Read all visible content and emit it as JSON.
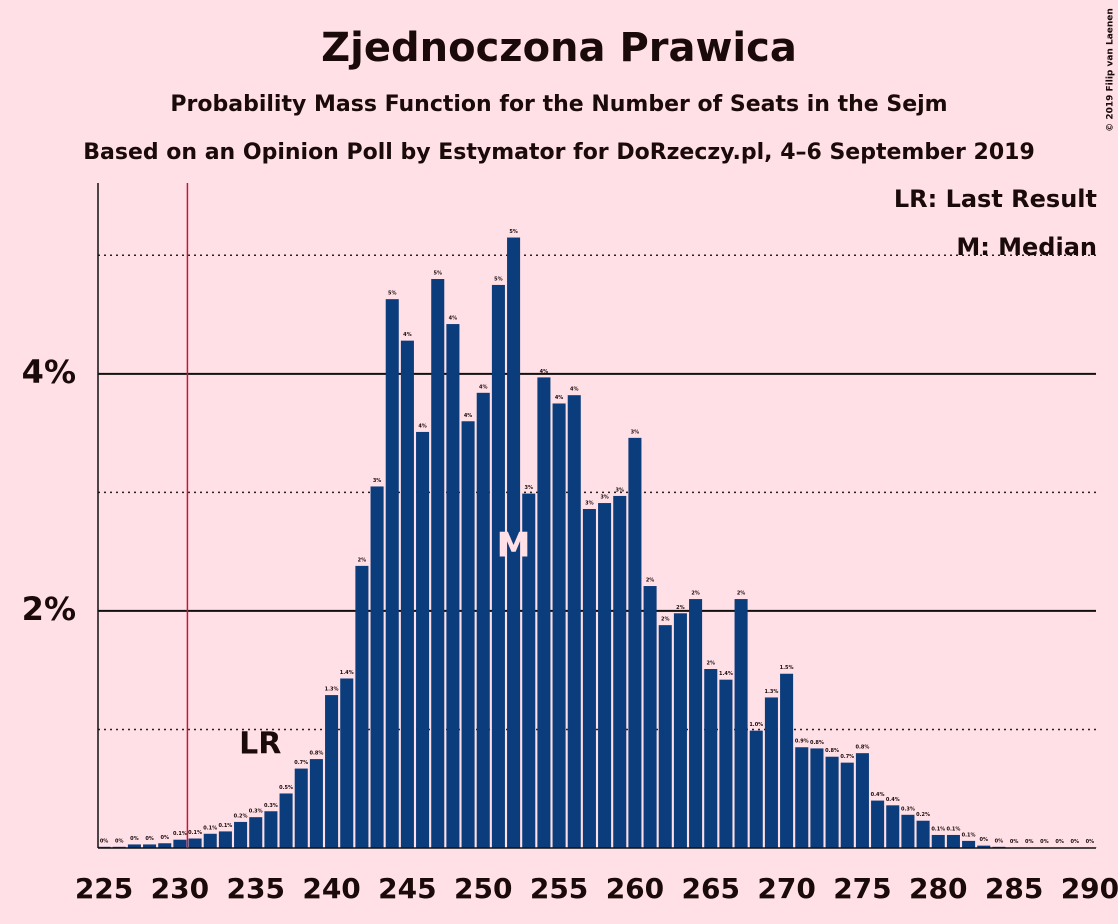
{
  "chart_data": {
    "type": "bar",
    "title": "Zjednoczona Prawica",
    "subtitle": "Probability Mass Function for the Number of Seats in the Sejm",
    "subtitle2": "Based on an Opinion Poll by Estymator for DoRzeczy.pl, 4–6 September 2019",
    "copyright": "© 2019 Filip van Laenen",
    "legend": [
      "LR: Last Result",
      "M: Median"
    ],
    "last_result": 230,
    "last_result_label": "LR",
    "median": 252,
    "median_label": "M",
    "color": "#0b3c7c",
    "lr_color": "#c8143c",
    "x": [
      225,
      226,
      227,
      228,
      229,
      230,
      231,
      232,
      233,
      234,
      235,
      236,
      237,
      238,
      239,
      240,
      241,
      242,
      243,
      244,
      245,
      246,
      247,
      248,
      249,
      250,
      251,
      252,
      253,
      254,
      255,
      256,
      257,
      258,
      259,
      260,
      261,
      262,
      263,
      264,
      265,
      266,
      267,
      268,
      269,
      270,
      271,
      272,
      273,
      274,
      275,
      276,
      277,
      278,
      279,
      280,
      281,
      282,
      283,
      284,
      285,
      286,
      287,
      288,
      289,
      290
    ],
    "values": [
      0.01,
      0.01,
      0.03,
      0.03,
      0.04,
      0.07,
      0.08,
      0.12,
      0.14,
      0.22,
      0.26,
      0.31,
      0.46,
      0.67,
      0.75,
      1.29,
      1.43,
      2.38,
      3.05,
      4.63,
      4.28,
      3.51,
      4.8,
      4.42,
      3.6,
      3.84,
      4.75,
      5.15,
      2.99,
      3.97,
      3.75,
      3.82,
      2.86,
      2.91,
      2.97,
      3.46,
      2.21,
      1.88,
      1.98,
      2.1,
      1.51,
      1.42,
      2.1,
      0.99,
      1.27,
      1.47,
      0.85,
      0.84,
      0.77,
      0.72,
      0.8,
      0.4,
      0.36,
      0.28,
      0.23,
      0.11,
      0.11,
      0.06,
      0.02,
      0.01,
      0.004,
      0.004,
      0.004,
      0.004,
      0.004,
      0.004
    ],
    "value_labels": [
      "0%",
      "0%",
      "0%",
      "0%",
      "0%",
      "0.1%",
      "0.1%",
      "0.1%",
      "0.1%",
      "0.2%",
      "0.3%",
      "0.3%",
      "0.5%",
      "0.7%",
      "0.8%",
      "1.3%",
      "1.4%",
      "2%",
      "3%",
      "5%",
      "4%",
      "4%",
      "5%",
      "4%",
      "4%",
      "4%",
      "5%",
      "5%",
      "3%",
      "4%",
      "4%",
      "4%",
      "3%",
      "3%",
      "3%",
      "3%",
      "2%",
      "2%",
      "2%",
      "2%",
      "2%",
      "1.4%",
      "2%",
      "1.0%",
      "1.3%",
      "1.5%",
      "0.9%",
      "0.8%",
      "0.8%",
      "0.7%",
      "0.8%",
      "0.4%",
      "0.4%",
      "0.3%",
      "0.2%",
      "0.1%",
      "0.1%",
      "0.1%",
      "0%",
      "0%",
      "0%",
      "0%",
      "0%",
      "0%",
      "0%",
      "0%"
    ],
    "xlim": [
      224.6,
      290.4
    ],
    "xticks": [
      225,
      230,
      235,
      240,
      245,
      250,
      255,
      260,
      265,
      270,
      275,
      280,
      285,
      290
    ],
    "ylim": [
      0,
      5.61
    ],
    "yticks": [
      {
        "value": 2,
        "label": "2%"
      },
      {
        "value": 4,
        "label": "4%"
      }
    ],
    "minor_yticks": [
      1,
      3,
      5
    ],
    "grid": true
  }
}
